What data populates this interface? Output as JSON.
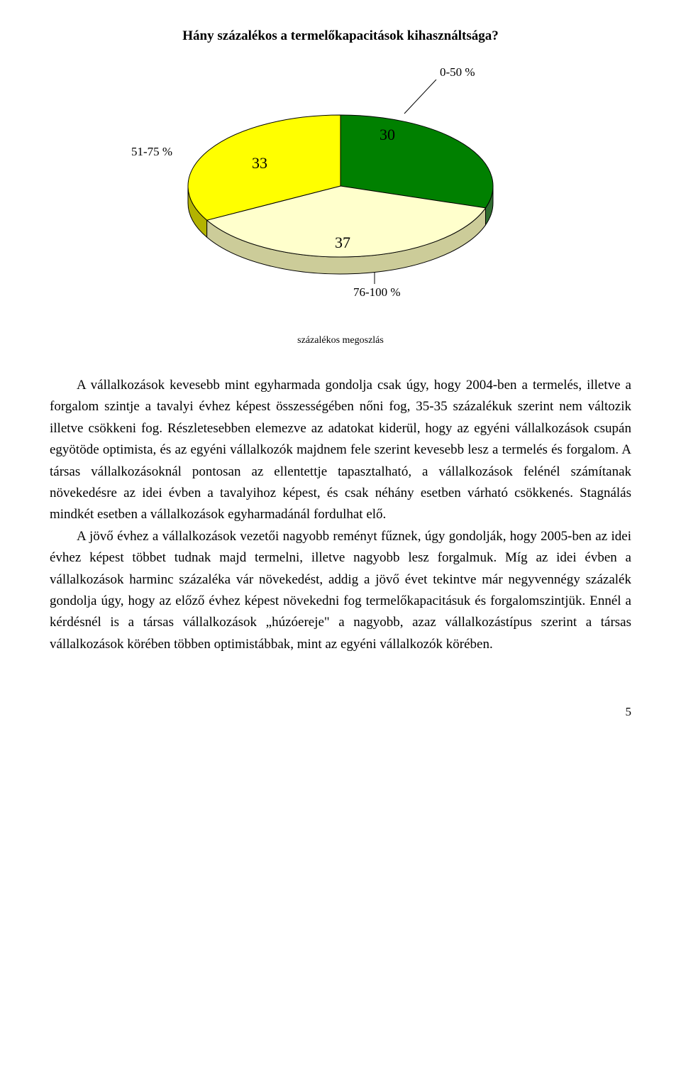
{
  "chart": {
    "type": "pie",
    "title": "Hány százalékos a termelőkapacitások kihasználtsága?",
    "caption": "százalékos megoszlás",
    "slices": [
      {
        "label": "0-50 %",
        "value": 30,
        "fill": "#008000",
        "rim": "#2f6d2f"
      },
      {
        "label": "76-100 %",
        "value": 37,
        "fill": "#ffffcc",
        "rim": "#cccc99"
      },
      {
        "label": "51-75 %",
        "value": 33,
        "fill": "#ffff00",
        "rim": "#b3b300"
      }
    ],
    "outline_color": "#000000",
    "background_color": "#ffffff",
    "value_fontsize": 22,
    "label_fontsize": 17
  },
  "paragraphs": {
    "p1": "A vállalkozások kevesebb mint egyharmada gondolja csak úgy, hogy 2004-ben a termelés, illetve a forgalom szintje a tavalyi évhez képest összességében nőni fog, 35-35 százalékuk szerint nem változik illetve csökkeni fog. Részletesebben elemezve az adatokat kiderül, hogy az egyéni vállalkozások csupán egyötöde optimista, és az egyéni vállalkozók majdnem fele szerint kevesebb lesz a termelés és forgalom. A társas vállalkozásoknál pontosan az ellentettje tapasztalható, a vállalkozások felénél számítanak növekedésre az idei évben a tavalyihoz képest, és csak néhány esetben várható csökkenés. Stagnálás mindkét esetben a vállalkozások egyharmadánál fordulhat elő.",
    "p2": "A jövő évhez a vállalkozások vezetői nagyobb reményt fűznek, úgy gondolják, hogy 2005-ben az idei évhez képest többet tudnak majd termelni, illetve nagyobb lesz forgalmuk. Míg az idei évben a vállalkozások harminc százaléka vár növekedést, addig a jövő évet tekintve már negyvennégy százalék gondolja úgy, hogy az előző évhez képest növekedni fog termelőkapacitásuk és forgalomszintjük. Ennél a kérdésnél is a társas vállalkozások „húzóereje\" a nagyobb, azaz vállalkozástípus szerint a társas vállalkozások körében többen optimistábbak, mint az egyéni vállalkozók körében."
  },
  "page_number": "5"
}
